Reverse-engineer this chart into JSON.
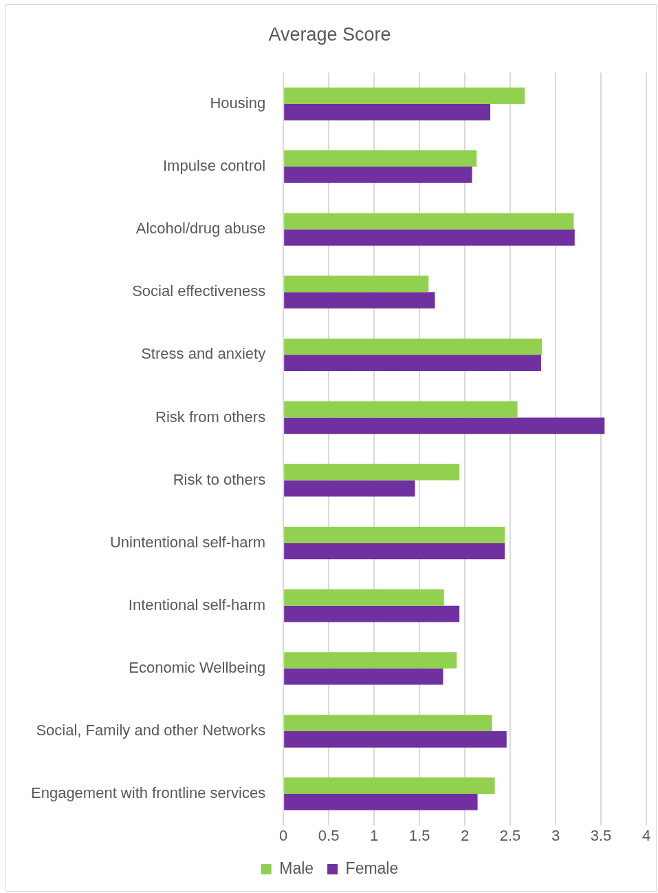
{
  "chart_data": {
    "type": "bar",
    "orientation": "horizontal",
    "title": "Average Score",
    "categories": [
      "Housing",
      "Impulse control",
      "Alcohol/drug abuse",
      "Social effectiveness",
      "Stress and anxiety",
      "Risk from others",
      "Risk to others",
      "Unintentional self-harm",
      "Intentional self-harm",
      "Economic Wellbeing",
      "Social, Family and other Networks",
      "Engagement with frontline services"
    ],
    "series": [
      {
        "name": "Male",
        "color": "#92d050",
        "values": [
          2.66,
          2.13,
          3.2,
          1.6,
          2.85,
          2.58,
          1.94,
          2.44,
          1.77,
          1.91,
          2.3,
          2.33
        ]
      },
      {
        "name": "Female",
        "color": "#7030a0",
        "values": [
          2.28,
          2.08,
          3.21,
          1.67,
          2.84,
          3.54,
          1.45,
          2.44,
          1.94,
          1.76,
          2.46,
          2.14
        ]
      }
    ],
    "xlim": [
      0,
      4
    ],
    "xticks": [
      0,
      0.5,
      1,
      1.5,
      2,
      2.5,
      3,
      3.5,
      4
    ],
    "grid": "x",
    "legend": "bottom"
  }
}
